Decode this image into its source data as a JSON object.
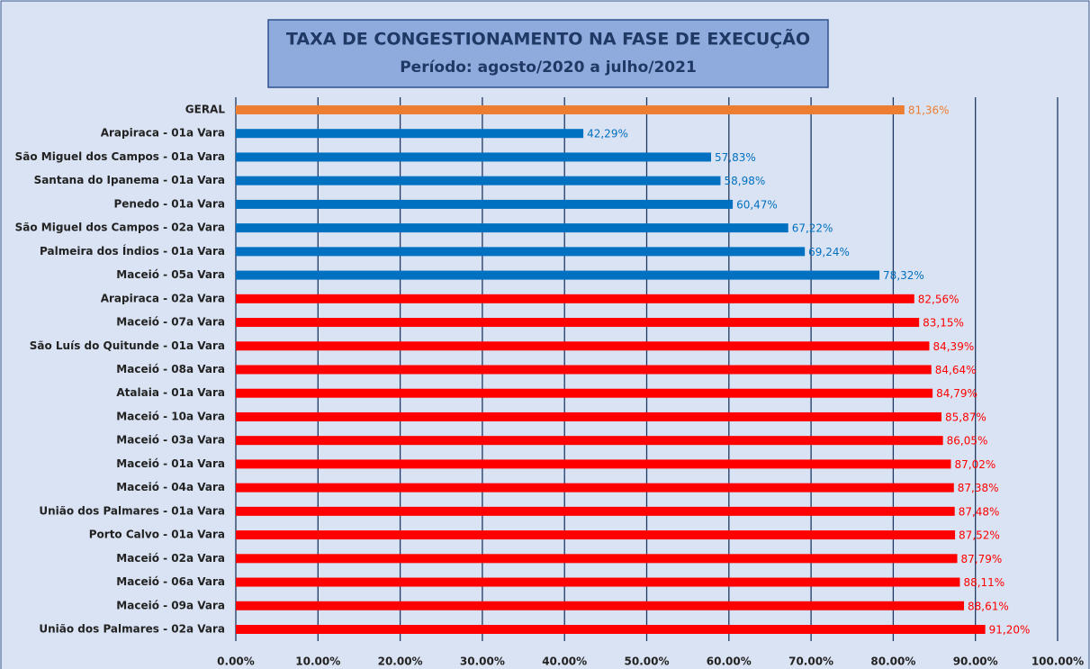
{
  "chart_data": {
    "type": "barh",
    "title": "TAXA DE CONGESTIONAMENTO NA FASE DE EXECUÇÃO",
    "subtitle": "Período: agosto/2020 a julho/2021",
    "categories": [
      "GERAL",
      "Arapiraca - 01a Vara",
      "São Miguel dos Campos - 01a Vara",
      "Santana do Ipanema - 01a Vara",
      "Penedo - 01a Vara",
      "São Miguel dos Campos - 02a Vara",
      "Palmeira dos Índios - 01a Vara",
      "Maceió - 05a Vara",
      "Arapiraca - 02a Vara",
      "Maceió - 07a Vara",
      "São Luís do Quitunde - 01a Vara",
      "Maceió - 08a Vara",
      "Atalaia - 01a Vara",
      "Maceió - 10a Vara",
      "Maceió - 03a Vara",
      "Maceió - 01a Vara",
      "Maceió - 04a Vara",
      "União dos Palmares - 01a Vara",
      "Porto Calvo - 01a Vara",
      "Maceió - 02a Vara",
      "Maceió - 06a Vara",
      "Maceió - 09a Vara",
      "União dos Palmares - 02a Vara"
    ],
    "values": [
      81.36,
      42.29,
      57.83,
      58.98,
      60.47,
      67.22,
      69.24,
      78.32,
      82.56,
      83.15,
      84.39,
      84.64,
      84.79,
      85.87,
      86.05,
      87.02,
      87.38,
      87.48,
      87.52,
      87.79,
      88.11,
      88.61,
      91.2
    ],
    "value_labels": [
      "81,36%",
      "42,29%",
      "57,83%",
      "58,98%",
      "60,47%",
      "67,22%",
      "69,24%",
      "78,32%",
      "82,56%",
      "83,15%",
      "84,39%",
      "84,64%",
      "84,79%",
      "85,87%",
      "86,05%",
      "87,02%",
      "87,38%",
      "87,48%",
      "87,52%",
      "87,79%",
      "88,11%",
      "88,61%",
      "91,20%"
    ],
    "colors": [
      "#ed7d31",
      "#0070c0",
      "#0070c0",
      "#0070c0",
      "#0070c0",
      "#0070c0",
      "#0070c0",
      "#0070c0",
      "#ff0000",
      "#ff0000",
      "#ff0000",
      "#ff0000",
      "#ff0000",
      "#ff0000",
      "#ff0000",
      "#ff0000",
      "#ff0000",
      "#ff0000",
      "#ff0000",
      "#ff0000",
      "#ff0000",
      "#ff0000",
      "#ff0000"
    ],
    "xlim": [
      0,
      100
    ],
    "xticks": [
      {
        "value": 0,
        "label": "0.00%"
      },
      {
        "value": 10,
        "label": "10.00%"
      },
      {
        "value": 20,
        "label": "20.00%"
      },
      {
        "value": 30,
        "label": "30.00%"
      },
      {
        "value": 40,
        "label": "40.00%"
      },
      {
        "value": 50,
        "label": "50.00%"
      },
      {
        "value": 60,
        "label": "60.00%"
      },
      {
        "value": 70,
        "label": "70.00%"
      },
      {
        "value": 80,
        "label": "80.00%"
      },
      {
        "value": 90,
        "label": "90.00%"
      },
      {
        "value": 100,
        "label": "100.00%"
      }
    ],
    "grid": true
  }
}
